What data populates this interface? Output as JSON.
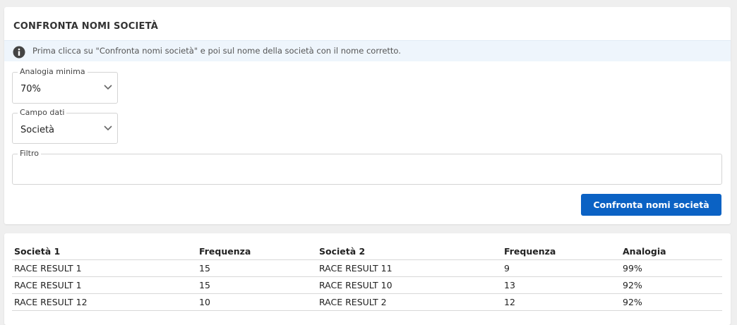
{
  "panel": {
    "title": "CONFRONTA NOMI SOCIETÀ",
    "info": "Prima clicca su \"Confronta nomi società\" e poi sul nome della società con il nome corretto.",
    "fields": [
      {
        "label": "Analogia minima",
        "value": "70%"
      },
      {
        "label": "Campo dati",
        "value": "Società"
      },
      {
        "label": "Filtro"
      }
    ],
    "button": "Confronta nomi società"
  },
  "table": {
    "headers": [
      "Società 1",
      "Frequenza",
      "Società 2",
      "Frequenza",
      "Analogia"
    ],
    "rows": [
      [
        "RACE RESULT 1",
        "15",
        "RACE RESULT 11",
        "9",
        "99%"
      ],
      [
        "RACE RESULT 1",
        "15",
        "RACE RESULT 10",
        "13",
        "92%"
      ],
      [
        "RACE RESULT 12",
        "10",
        "RACE RESULT 2",
        "12",
        "92%"
      ]
    ]
  }
}
